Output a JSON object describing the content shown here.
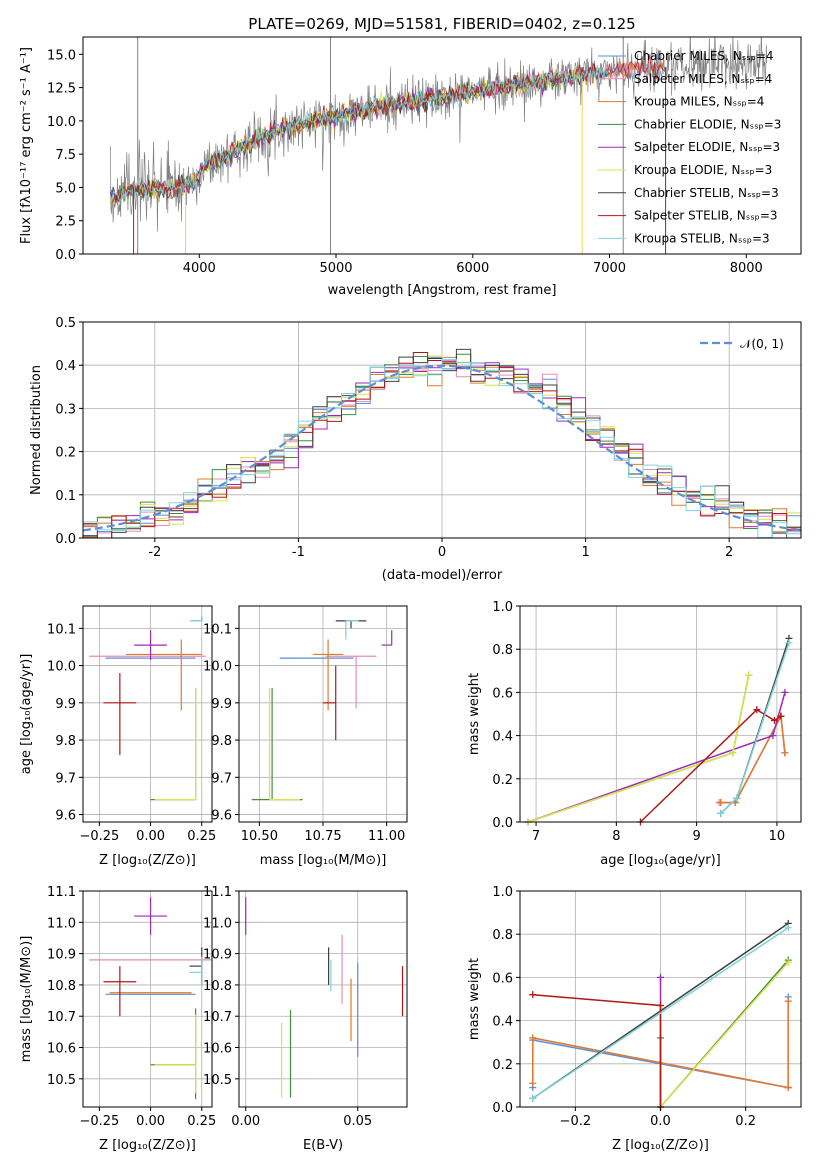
{
  "colors": {
    "chabrier_miles": "#5b8fd6",
    "salpeter_miles": "#e38db8",
    "kroupa_miles": "#e07b2c",
    "chabrier_elodie": "#3f8f3f",
    "salpeter_elodie": "#9a2bb8",
    "kroupa_elodie": "#dce34a",
    "chabrier_stelib": "#404040",
    "salpeter_stelib": "#b01818",
    "kroupa_stelib": "#7fd3df",
    "normal": "#5b8fd6",
    "data": "#808080"
  },
  "chart_data": [
    {
      "id": "spectrum",
      "type": "line",
      "title": "PLATE=0269, MJD=51581, FIBERID=0402, z=0.125",
      "xlabel": "wavelength [Angstrom, rest frame]",
      "ylabel": "Flux [fλ10⁻¹⁷ erg cm⁻² s⁻¹ A⁻¹]",
      "xlim": [
        3150,
        8400
      ],
      "ylim": [
        0,
        16.3
      ],
      "xticks": [
        4000,
        5000,
        6000,
        7000,
        8000
      ],
      "yticks": [
        0.0,
        2.5,
        5.0,
        7.5,
        10.0,
        12.5,
        15.0
      ],
      "continuum": {
        "x": [
          3350,
          3450,
          3550,
          3700,
          3850,
          3950,
          4050,
          4200,
          4400,
          4600,
          4800,
          5000,
          5200,
          5400,
          5600,
          5800,
          6000,
          6200,
          6400,
          6600,
          6800,
          7000,
          7200,
          7400,
          7600,
          7800,
          8000,
          8150
        ],
        "y": [
          4.2,
          4.6,
          4.8,
          4.9,
          5.0,
          5.3,
          6.6,
          7.4,
          8.5,
          9.4,
          9.9,
          10.3,
          10.8,
          11.2,
          11.5,
          11.8,
          12.2,
          12.6,
          12.8,
          13.1,
          13.4,
          13.7,
          14.0,
          14.1,
          14.2,
          14.4,
          14.5,
          14.6
        ]
      },
      "legend": [
        "Chabrier MILES, Nₛₛₚ=4",
        "Salpeter MILES, Nₛₛₚ=4",
        "Kroupa MILES, Nₛₛₚ=4",
        "Chabrier ELODIE, Nₛₛₚ=3",
        "Salpeter ELODIE, Nₛₛₚ=3",
        "Kroupa ELODIE, Nₛₛₚ=3",
        "Chabrier STELIB, Nₛₛₚ=3",
        "Salpeter STELIB, Nₛₛₚ=3",
        "Kroupa STELIB, Nₛₛₚ=3"
      ]
    },
    {
      "id": "residuals",
      "type": "line",
      "xlabel": "(data-model)/error",
      "ylabel": "Normed distribution",
      "xlim": [
        -2.5,
        2.5
      ],
      "ylim": [
        0,
        0.5
      ],
      "xticks": [
        -2,
        -1,
        0,
        1,
        2
      ],
      "yticks": [
        0.0,
        0.1,
        0.2,
        0.3,
        0.4,
        0.5
      ],
      "bin_width": 0.1,
      "legend": [
        "𝒩(0, 1)"
      ]
    },
    {
      "id": "age_vs_Z",
      "type": "scatter",
      "xlabel": "Z [log₁₀(Z/Z⊙)]",
      "ylabel": "age  [log₁₀(age/yr)]",
      "xlim": [
        -0.33,
        0.3
      ],
      "ylim": [
        9.58,
        10.16
      ],
      "xticks": [
        -0.25,
        0.0,
        0.25
      ],
      "xtick_labels": [
        "−0.25",
        "0.00",
        "0.25"
      ],
      "yticks": [
        9.6,
        9.7,
        9.8,
        9.9,
        10.0,
        10.1
      ],
      "points": [
        {
          "x": 0.1,
          "y": 10.02,
          "xerr": [
            0.32,
            0.12
          ],
          "yerr": [
            0.0,
            0.0
          ],
          "c": "chabrier_miles"
        },
        {
          "x": 0.1,
          "y": 10.025,
          "xerr": [
            0.4,
            0.17
          ],
          "yerr": [
            0.0,
            0.0
          ],
          "c": "salpeter_miles"
        },
        {
          "x": 0.15,
          "y": 10.03,
          "xerr": [
            0.27,
            0.1
          ],
          "yerr": [
            0.15,
            0.04
          ],
          "c": "kroupa_miles"
        },
        {
          "x": 0.22,
          "y": 9.64,
          "xerr": [
            0.22,
            0.0
          ],
          "yerr": [
            0.0,
            0.3
          ],
          "c": "chabrier_elodie"
        },
        {
          "x": 0.0,
          "y": 10.055,
          "xerr": [
            0.08,
            0.08
          ],
          "yerr": [
            0.04,
            0.04
          ],
          "c": "salpeter_elodie"
        },
        {
          "x": 0.22,
          "y": 9.64,
          "xerr": [
            0.2,
            0.0
          ],
          "yerr": [
            0.0,
            0.3
          ],
          "c": "kroupa_elodie"
        },
        {
          "x": 0.25,
          "y": 10.12,
          "xerr": [
            0.05,
            0.0
          ],
          "yerr": [
            0.0,
            0.01
          ],
          "c": "chabrier_stelib"
        },
        {
          "x": -0.15,
          "y": 9.9,
          "xerr": [
            0.08,
            0.08
          ],
          "yerr": [
            0.14,
            0.08
          ],
          "c": "salpeter_stelib"
        },
        {
          "x": 0.25,
          "y": 10.12,
          "xerr": [
            0.06,
            0.0
          ],
          "yerr": [
            0.0,
            0.01
          ],
          "c": "kroupa_stelib"
        }
      ]
    },
    {
      "id": "age_vs_mass",
      "type": "scatter",
      "xlabel": "mass [log₁₀(M/M⊙)]",
      "ylabel": "",
      "xlim": [
        10.42,
        11.08
      ],
      "ylim": [
        9.58,
        10.16
      ],
      "xticks": [
        10.5,
        10.75,
        11.0
      ],
      "xtick_labels": [
        "10.50",
        "10.75",
        "11.00"
      ],
      "yticks": [
        9.6,
        9.7,
        9.8,
        9.9,
        10.0,
        10.1
      ],
      "points": [
        {
          "x": 10.77,
          "y": 10.02,
          "xerr": [
            0.19,
            0.1
          ],
          "yerr": [
            0.0,
            0.0
          ],
          "c": "chabrier_miles"
        },
        {
          "x": 10.88,
          "y": 10.025,
          "xerr": [
            0.12,
            0.08
          ],
          "yerr": [
            0.14,
            0.0
          ],
          "c": "salpeter_miles"
        },
        {
          "x": 10.77,
          "y": 10.03,
          "xerr": [
            0.06,
            0.06
          ],
          "yerr": [
            0.15,
            0.04
          ],
          "c": "kroupa_miles"
        },
        {
          "x": 10.55,
          "y": 9.64,
          "xerr": [
            0.08,
            0.12
          ],
          "yerr": [
            0.0,
            0.3
          ],
          "c": "chabrier_elodie"
        },
        {
          "x": 11.02,
          "y": 10.055,
          "xerr": [
            0.04,
            0.0
          ],
          "yerr": [
            0.0,
            0.04
          ],
          "c": "salpeter_elodie"
        },
        {
          "x": 10.54,
          "y": 9.64,
          "xerr": [
            0.0,
            0.12
          ],
          "yerr": [
            0.0,
            0.3
          ],
          "c": "kroupa_elodie"
        },
        {
          "x": 10.86,
          "y": 10.12,
          "xerr": [
            0.06,
            0.06
          ],
          "yerr": [
            0.02,
            0.0
          ],
          "c": "chabrier_stelib"
        },
        {
          "x": 10.8,
          "y": 9.9,
          "xerr": [
            0.05,
            0.0
          ],
          "yerr": [
            0.1,
            0.1
          ],
          "c": "salpeter_stelib"
        },
        {
          "x": 10.84,
          "y": 10.12,
          "xerr": [
            0.0,
            0.05
          ],
          "yerr": [
            0.05,
            0.0
          ],
          "c": "kroupa_stelib"
        }
      ]
    },
    {
      "id": "mass_weight_vs_age",
      "type": "line",
      "xlabel": "age  [log₁₀(age/yr)]",
      "ylabel": "mass weight",
      "xlim": [
        6.8,
        10.3
      ],
      "ylim": [
        0,
        1.0
      ],
      "xticks": [
        7,
        8,
        9,
        10
      ],
      "yticks": [
        0.0,
        0.2,
        0.4,
        0.6,
        0.8,
        1.0
      ],
      "series": [
        {
          "c": "chabrier_miles",
          "x": [
            9.3,
            9.48,
            10.05,
            10.1
          ],
          "y": [
            0.09,
            0.09,
            0.49,
            0.32
          ]
        },
        {
          "c": "salpeter_miles",
          "x": [
            9.28,
            9.48,
            10.05,
            10.1
          ],
          "y": [
            0.09,
            0.09,
            0.49,
            0.32
          ]
        },
        {
          "c": "kroupa_miles",
          "x": [
            9.3,
            9.48,
            10.05,
            10.1
          ],
          "y": [
            0.09,
            0.09,
            0.49,
            0.32
          ]
        },
        {
          "c": "chabrier_elodie",
          "x": [
            6.9,
            9.45,
            9.65
          ],
          "y": [
            0.0,
            0.32,
            0.68
          ]
        },
        {
          "c": "salpeter_elodie",
          "x": [
            6.9,
            9.95,
            10.1
          ],
          "y": [
            0.0,
            0.4,
            0.6
          ]
        },
        {
          "c": "kroupa_elodie",
          "x": [
            6.9,
            9.45,
            9.65
          ],
          "y": [
            0.0,
            0.32,
            0.68
          ]
        },
        {
          "c": "chabrier_stelib",
          "x": [
            9.3,
            9.5,
            10.15
          ],
          "y": [
            0.04,
            0.11,
            0.85
          ]
        },
        {
          "c": "salpeter_stelib",
          "x": [
            8.3,
            9.75,
            9.97,
            10.05
          ],
          "y": [
            0.0,
            0.52,
            0.47,
            0.49
          ]
        },
        {
          "c": "kroupa_stelib",
          "x": [
            9.3,
            9.5,
            10.15
          ],
          "y": [
            0.04,
            0.11,
            0.83
          ]
        }
      ]
    },
    {
      "id": "mass_vs_Z",
      "type": "scatter",
      "xlabel": "Z [log₁₀(Z/Z⊙)]",
      "ylabel": "mass [log₁₀(M/M⊙)]",
      "xlim": [
        -0.33,
        0.3
      ],
      "ylim": [
        10.41,
        11.1
      ],
      "xticks": [
        -0.25,
        0.0,
        0.25
      ],
      "xtick_labels": [
        "−0.25",
        "0.00",
        "0.25"
      ],
      "yticks": [
        10.5,
        10.6,
        10.7,
        10.8,
        10.9,
        11.0,
        11.1
      ],
      "points": [
        {
          "x": 0.0,
          "y": 10.77,
          "xerr": [
            0.22,
            0.22
          ],
          "yerr": [
            0.0,
            0.0
          ],
          "c": "chabrier_miles"
        },
        {
          "x": 0.0,
          "y": 10.88,
          "xerr": [
            0.3,
            0.3
          ],
          "yerr": [
            0.0,
            0.0
          ],
          "c": "salpeter_miles"
        },
        {
          "x": 0.0,
          "y": 10.775,
          "xerr": [
            0.2,
            0.2
          ],
          "yerr": [
            0.0,
            0.0
          ],
          "c": "kroupa_miles"
        },
        {
          "x": 0.22,
          "y": 10.545,
          "xerr": [
            0.22,
            0.0
          ],
          "yerr": [
            0.11,
            0.18
          ],
          "c": "chabrier_elodie"
        },
        {
          "x": 0.0,
          "y": 11.02,
          "xerr": [
            0.08,
            0.08
          ],
          "yerr": [
            0.06,
            0.06
          ],
          "c": "salpeter_elodie"
        },
        {
          "x": 0.22,
          "y": 10.545,
          "xerr": [
            0.2,
            0.0
          ],
          "yerr": [
            0.09,
            0.16
          ],
          "c": "kroupa_elodie"
        },
        {
          "x": 0.25,
          "y": 10.86,
          "xerr": [
            0.06,
            0.0
          ],
          "yerr": [
            0.06,
            0.06
          ],
          "c": "chabrier_stelib"
        },
        {
          "x": -0.15,
          "y": 10.81,
          "xerr": [
            0.08,
            0.08
          ],
          "yerr": [
            0.11,
            0.05
          ],
          "c": "salpeter_stelib"
        },
        {
          "x": 0.25,
          "y": 10.84,
          "xerr": [
            0.06,
            0.0
          ],
          "yerr": [
            0.05,
            0.05
          ],
          "c": "kroupa_stelib"
        }
      ]
    },
    {
      "id": "mass_vs_EBV",
      "type": "scatter",
      "xlabel": "E(B-V)",
      "ylabel": "",
      "xlim": [
        -0.003,
        0.072
      ],
      "ylim": [
        10.41,
        11.1
      ],
      "xticks": [
        0.0,
        0.05
      ],
      "xtick_labels": [
        "0.00",
        "0.05"
      ],
      "yticks": [
        10.5,
        10.6,
        10.7,
        10.8,
        10.9,
        11.0,
        11.1
      ],
      "points": [
        {
          "x": 0.05,
          "y": 10.72,
          "xerr": [
            0.0,
            0.0
          ],
          "yerr": [
            0.15,
            0.15
          ],
          "c": "chabrier_miles"
        },
        {
          "x": 0.043,
          "y": 10.84,
          "xerr": [
            0.0,
            0.0
          ],
          "yerr": [
            0.1,
            0.12
          ],
          "c": "salpeter_miles"
        },
        {
          "x": 0.047,
          "y": 10.72,
          "xerr": [
            0.0,
            0.0
          ],
          "yerr": [
            0.1,
            0.1
          ],
          "c": "kroupa_miles"
        },
        {
          "x": 0.02,
          "y": 10.58,
          "xerr": [
            0.0,
            0.0
          ],
          "yerr": [
            0.14,
            0.14
          ],
          "c": "chabrier_elodie"
        },
        {
          "x": 0.0,
          "y": 11.02,
          "xerr": [
            0.0,
            0.0
          ],
          "yerr": [
            0.06,
            0.06
          ],
          "c": "salpeter_elodie"
        },
        {
          "x": 0.016,
          "y": 10.56,
          "xerr": [
            0.0,
            0.0
          ],
          "yerr": [
            0.12,
            0.12
          ],
          "c": "kroupa_elodie"
        },
        {
          "x": 0.037,
          "y": 10.86,
          "xerr": [
            0.0,
            0.0
          ],
          "yerr": [
            0.06,
            0.06
          ],
          "c": "chabrier_stelib"
        },
        {
          "x": 0.07,
          "y": 10.78,
          "xerr": [
            0.0,
            0.0
          ],
          "yerr": [
            0.08,
            0.08
          ],
          "c": "salpeter_stelib"
        },
        {
          "x": 0.038,
          "y": 10.83,
          "xerr": [
            0.0,
            0.0
          ],
          "yerr": [
            0.05,
            0.05
          ],
          "c": "kroupa_stelib"
        }
      ]
    },
    {
      "id": "mass_weight_vs_Z",
      "type": "line",
      "xlabel": "Z [log₁₀(Z/Z⊙)]",
      "ylabel": "mass weight",
      "xlim": [
        -0.33,
        0.33
      ],
      "ylim": [
        0,
        1.0
      ],
      "xticks": [
        -0.2,
        0.0,
        0.2
      ],
      "xtick_labels": [
        "−0.2",
        "0.0",
        "0.2"
      ],
      "yticks": [
        0.0,
        0.2,
        0.4,
        0.6,
        0.8,
        1.0
      ],
      "series": [
        {
          "c": "chabrier_miles",
          "x": [
            -0.3,
            -0.3,
            0.3,
            0.3
          ],
          "y": [
            0.09,
            0.31,
            0.09,
            0.51
          ]
        },
        {
          "c": "salpeter_miles",
          "x": [
            -0.3,
            0.3,
            0.3
          ],
          "y": [
            0.32,
            0.09,
            0.49
          ]
        },
        {
          "c": "kroupa_miles",
          "x": [
            -0.3,
            -0.3,
            0.3,
            0.3
          ],
          "y": [
            0.11,
            0.32,
            0.09,
            0.49
          ]
        },
        {
          "c": "chabrier_elodie",
          "x": [
            0.0,
            0.0,
            0.3
          ],
          "y": [
            0.32,
            0.0,
            0.68
          ]
        },
        {
          "c": "salpeter_elodie",
          "x": [
            0.0,
            0.0
          ],
          "y": [
            0.0,
            0.6
          ]
        },
        {
          "c": "kroupa_elodie",
          "x": [
            0.0,
            0.3
          ],
          "y": [
            0.0,
            0.67
          ]
        },
        {
          "c": "chabrier_stelib",
          "x": [
            -0.3,
            0.3
          ],
          "y": [
            0.04,
            0.85
          ]
        },
        {
          "c": "salpeter_stelib",
          "x": [
            -0.3,
            0.0,
            0.0
          ],
          "y": [
            0.52,
            0.47,
            0.0
          ]
        },
        {
          "c": "kroupa_stelib",
          "x": [
            -0.3,
            0.3
          ],
          "y": [
            0.04,
            0.83
          ]
        }
      ]
    }
  ]
}
